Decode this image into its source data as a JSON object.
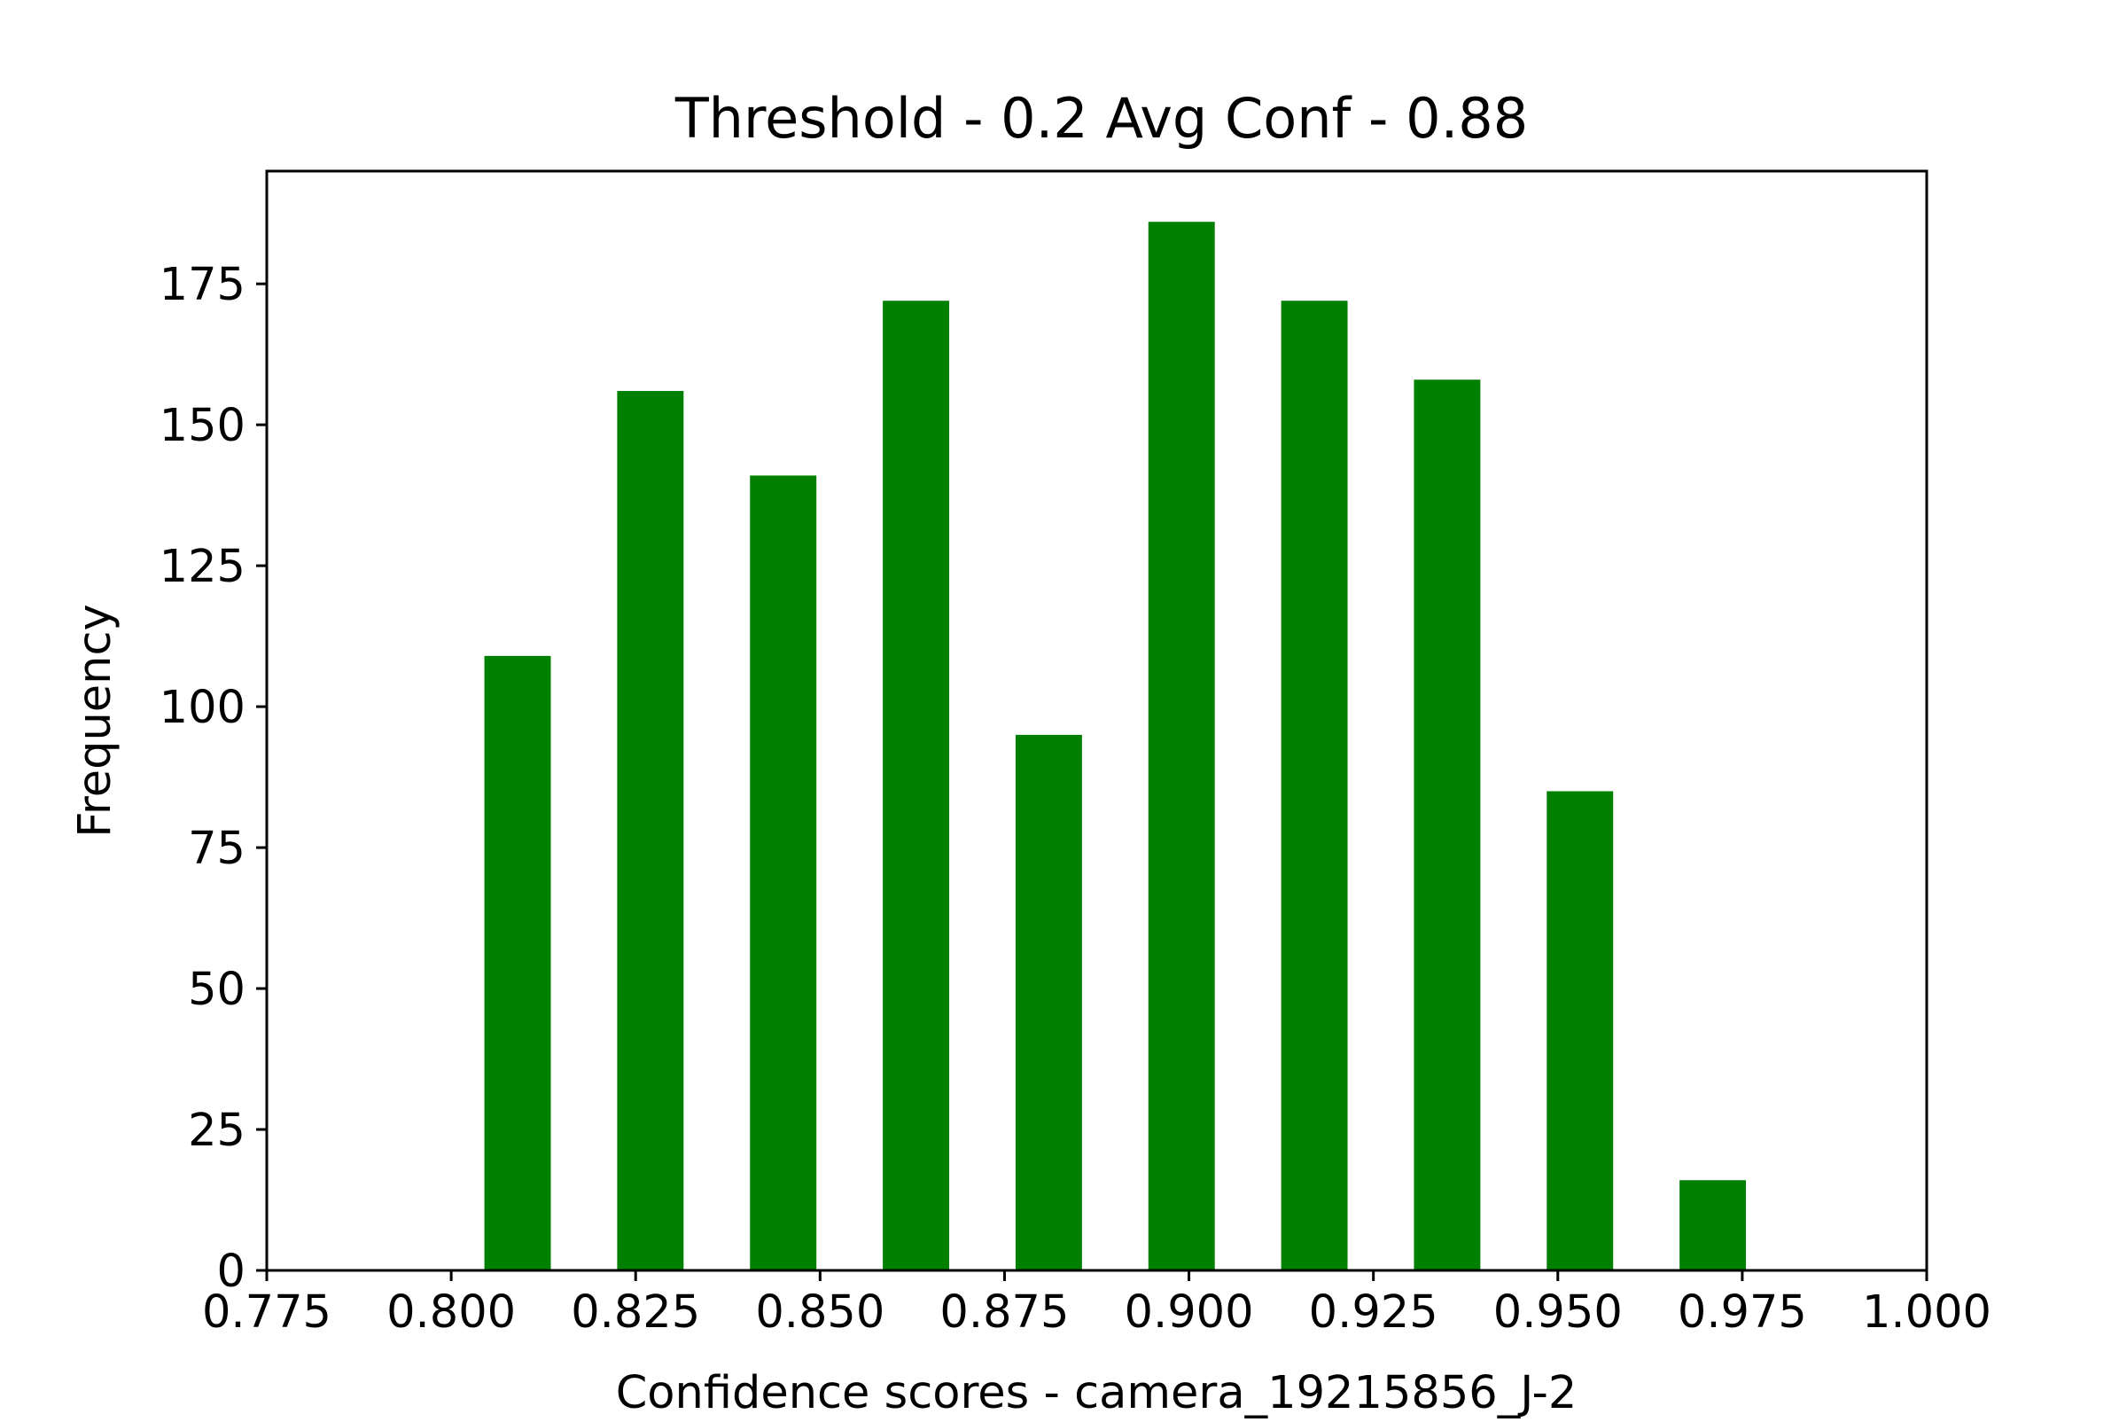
{
  "chart_data": {
    "type": "bar",
    "title": "Threshold - 0.2 Avg Conf - 0.88",
    "xlabel": "Confidence scores - camera_19215856_J-2",
    "ylabel": "Frequency",
    "xlim": [
      0.775,
      1.0
    ],
    "ylim": [
      0,
      195
    ],
    "bar_color": "#008000",
    "bar_width": 0.009,
    "grid": false,
    "legend": "none",
    "x_ticks": [
      0.775,
      0.8,
      0.825,
      0.85,
      0.875,
      0.9,
      0.925,
      0.95,
      0.975,
      1.0
    ],
    "x_tick_labels": [
      "0.775",
      "0.800",
      "0.825",
      "0.850",
      "0.875",
      "0.900",
      "0.925",
      "0.950",
      "0.975",
      "1.000"
    ],
    "y_ticks": [
      0,
      25,
      50,
      75,
      100,
      125,
      150,
      175
    ],
    "y_tick_labels": [
      "0",
      "25",
      "50",
      "75",
      "100",
      "125",
      "150",
      "175"
    ],
    "series": [
      {
        "x": [
          0.809,
          0.827,
          0.845,
          0.863,
          0.881,
          0.899,
          0.917,
          0.935,
          0.953,
          0.971
        ],
        "values": [
          109,
          156,
          141,
          172,
          95,
          186,
          172,
          158,
          85,
          16
        ]
      }
    ]
  }
}
